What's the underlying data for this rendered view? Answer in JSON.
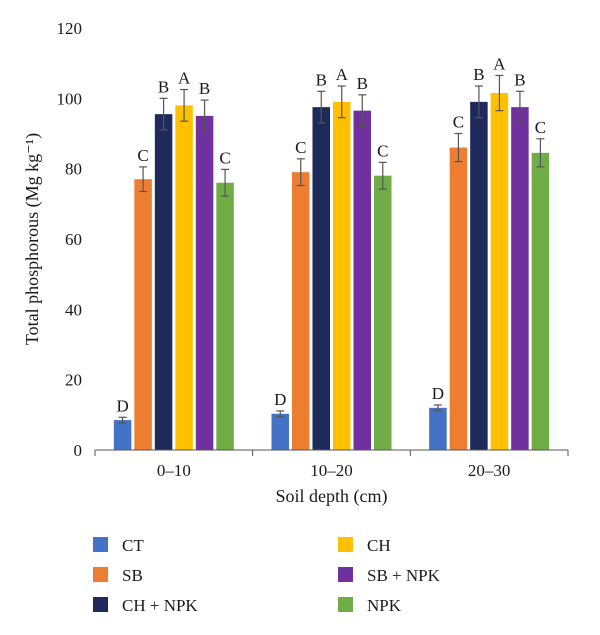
{
  "chart_data": {
    "type": "bar",
    "xlabel": "Soil depth (cm)",
    "ylabel": "Total phosphorous (Mg kg⁻¹)",
    "ylim": [
      0,
      120
    ],
    "yticks": [
      0,
      20,
      40,
      60,
      80,
      100,
      120
    ],
    "categories": [
      "0–10",
      "10–20",
      "20–30"
    ],
    "grid": false,
    "legend_position": "bottom",
    "series": [
      {
        "name": "CT",
        "color": "#4472c4",
        "values": [
          8.5,
          10.3,
          12.0
        ],
        "errors": [
          0.8,
          0.8,
          0.8
        ],
        "labels": [
          "D",
          "D",
          "D"
        ]
      },
      {
        "name": "SB",
        "color": "#ed7d31",
        "values": [
          77.0,
          79.0,
          86.0
        ],
        "errors": [
          3.5,
          3.8,
          4.0
        ],
        "labels": [
          "C",
          "C",
          "C"
        ]
      },
      {
        "name": "CH + NPK",
        "color": "#1f2a5c",
        "values": [
          95.5,
          97.5,
          99.0
        ],
        "errors": [
          4.5,
          4.5,
          4.5
        ],
        "labels": [
          "B",
          "B",
          "B"
        ]
      },
      {
        "name": "CH",
        "color": "#ffc000",
        "values": [
          98.0,
          99.0,
          101.5
        ],
        "errors": [
          4.5,
          4.5,
          5.0
        ],
        "labels": [
          "A",
          "A",
          "A"
        ]
      },
      {
        "name": "SB + NPK",
        "color": "#7030a0",
        "values": [
          95.0,
          96.5,
          97.5
        ],
        "errors": [
          4.5,
          4.5,
          4.5
        ],
        "labels": [
          "B",
          "B",
          "B"
        ]
      },
      {
        "name": "NPK",
        "color": "#70ad47",
        "values": [
          76.0,
          78.0,
          84.5
        ],
        "errors": [
          3.8,
          3.8,
          4.0
        ],
        "labels": [
          "C",
          "C",
          "C"
        ]
      }
    ]
  }
}
